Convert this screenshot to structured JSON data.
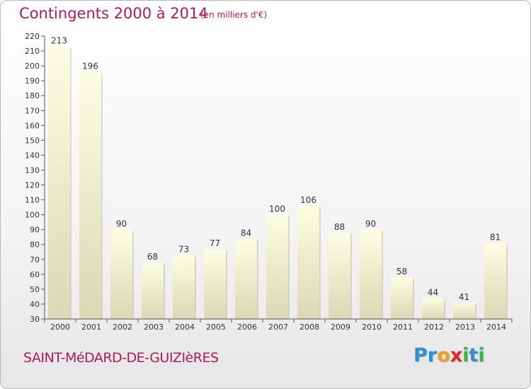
{
  "header": {
    "title": "Contingents 2000 à 2014",
    "subtitle": "(en milliers d'€)"
  },
  "footer": {
    "commune": "SAINT-MéDARD-DE-GUIZIèRES",
    "logo": {
      "letters": [
        "P",
        "r",
        "o",
        "x",
        "i",
        "t",
        "i"
      ],
      "colors": [
        "#2f8fd6",
        "#2f8fd6",
        "#f0a020",
        "#e0262a",
        "#36b54a",
        "#2f8fd6",
        "#36b54a"
      ]
    }
  },
  "colors": {
    "title": "#b01a57",
    "bar_top": "#fdfde2",
    "bar_bottom": "#d9d9b5",
    "axis": "#555555"
  },
  "chart_data": {
    "type": "bar",
    "categories": [
      "2000",
      "2001",
      "2002",
      "2003",
      "2004",
      "2005",
      "2006",
      "2007",
      "2008",
      "2009",
      "2010",
      "2011",
      "2012",
      "2013",
      "2014"
    ],
    "values": [
      213,
      196,
      90,
      68,
      73,
      77,
      84,
      100,
      106,
      88,
      90,
      58,
      44,
      41,
      81
    ],
    "title": "Contingents 2000 à 2014",
    "ylim": [
      30,
      220
    ],
    "yticks": [
      30,
      40,
      50,
      60,
      70,
      80,
      90,
      100,
      110,
      120,
      130,
      140,
      150,
      160,
      170,
      180,
      190,
      200,
      210,
      220
    ],
    "grid": false,
    "data_labels": true
  }
}
